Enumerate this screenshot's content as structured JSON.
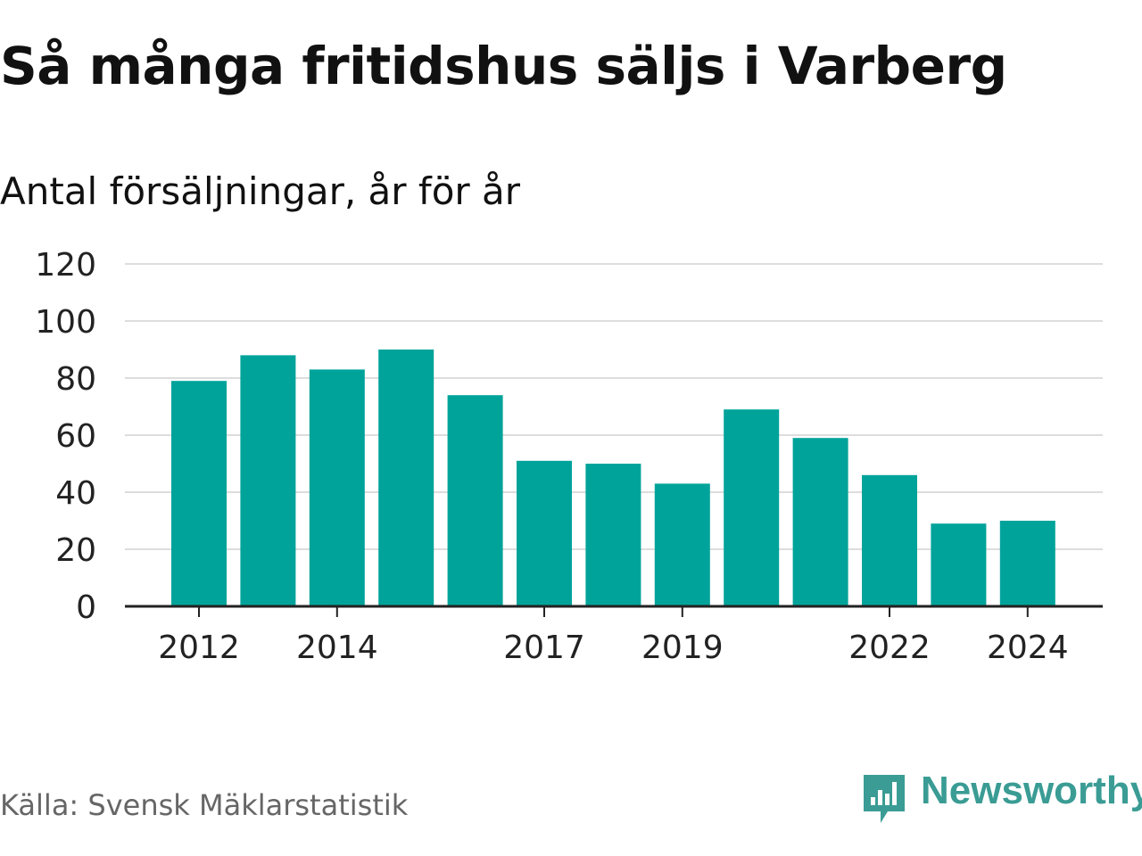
{
  "header": {
    "title": "Så många fritidshus säljs i Varberg",
    "subtitle": "Antal försäljningar, år för år"
  },
  "footer": {
    "source": "Källa: Svensk Mäklarstatistik",
    "brand": "Newsworthy"
  },
  "colors": {
    "bar": "#00a39a",
    "grid": "#dddddd",
    "axis": "#222222",
    "brand": "#3a9c94"
  },
  "chart_data": {
    "type": "bar",
    "categories": [
      "2012",
      "2013",
      "2014",
      "2015",
      "2016",
      "2017",
      "2018",
      "2019",
      "2020",
      "2021",
      "2022",
      "2023",
      "2024"
    ],
    "values": [
      79,
      88,
      83,
      90,
      74,
      51,
      50,
      43,
      69,
      59,
      46,
      29,
      30
    ],
    "x_tick_labels": [
      "2012",
      "2014",
      "2017",
      "2019",
      "2022",
      "2024"
    ],
    "y_ticks": [
      0,
      20,
      40,
      60,
      80,
      100,
      120
    ],
    "ylim": [
      0,
      120
    ],
    "title": "Så många fritidshus säljs i Varberg",
    "subtitle": "Antal försäljningar, år för år",
    "xlabel": "",
    "ylabel": "",
    "grid": true
  }
}
